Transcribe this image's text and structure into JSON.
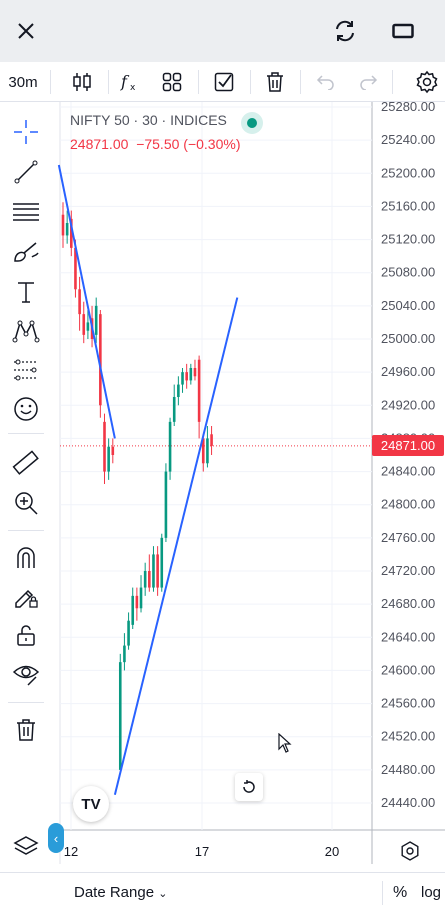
{
  "topbar": {
    "close_icon": "close-icon",
    "refresh_icon": "refresh-icon",
    "fullscreen_icon": "fullscreen-icon"
  },
  "toolbar": {
    "interval": "30m",
    "icons": [
      "candles-icon",
      "fx-indicators-icon",
      "templates-icon",
      "checkbox-icon",
      "trash-icon",
      "undo-icon",
      "redo-icon",
      "settings-icon"
    ]
  },
  "legend": {
    "symbol": "NIFTY 50 · 30 · INDICES",
    "last": "24871.00",
    "change": "−75.50 (−0.30%)"
  },
  "price_axis": {
    "labels": [
      "25280.00",
      "25240.00",
      "25200.00",
      "25160.00",
      "25120.00",
      "25080.00",
      "25040.00",
      "25000.00",
      "24960.00",
      "24920.00",
      "24880.00",
      "24840.00",
      "24800.00",
      "24760.00",
      "24720.00",
      "24680.00",
      "24640.00",
      "24600.00",
      "24560.00",
      "24520.00",
      "24480.00",
      "24440.00"
    ],
    "current_price": "24871.00"
  },
  "time_axis": {
    "labels": [
      "12",
      "17",
      "20"
    ]
  },
  "bottombar": {
    "date_range": "Date Range",
    "percent": "%",
    "log": "log"
  },
  "logo_text": "TV",
  "colors": {
    "up": "#089981",
    "down": "#f23645",
    "trendline": "#2962ff",
    "accent": "#2a9cd9"
  },
  "chart_data": {
    "type": "candlestick",
    "symbol": "NIFTY 50",
    "interval": "30",
    "ylim": [
      24420,
      25300
    ],
    "last_price": 24871.0,
    "candles": [
      {
        "o": 25150,
        "c": 25125,
        "h": 25165,
        "l": 25110
      },
      {
        "o": 25125,
        "c": 25140,
        "h": 25155,
        "l": 25115
      },
      {
        "o": 25145,
        "c": 25110,
        "h": 25155,
        "l": 25100
      },
      {
        "o": 25110,
        "c": 25060,
        "h": 25120,
        "l": 25050
      },
      {
        "o": 25060,
        "c": 25030,
        "h": 25075,
        "l": 25010
      },
      {
        "o": 25030,
        "c": 25005,
        "h": 25045,
        "l": 24995
      },
      {
        "o": 25010,
        "c": 25020,
        "h": 25035,
        "l": 25000
      },
      {
        "o": 25025,
        "c": 25000,
        "h": 25040,
        "l": 24990
      },
      {
        "o": 25005,
        "c": 25040,
        "h": 25050,
        "l": 24995
      },
      {
        "o": 25030,
        "c": 24920,
        "h": 25035,
        "l": 24905
      },
      {
        "o": 24900,
        "c": 24840,
        "h": 24910,
        "l": 24825
      },
      {
        "o": 24840,
        "c": 24870,
        "h": 24880,
        "l": 24830
      },
      {
        "o": 24870,
        "c": 24860,
        "h": 24880,
        "l": 24850
      },
      {
        "o": 24480,
        "c": 24610,
        "h": 24620,
        "l": 24480
      },
      {
        "o": 24610,
        "c": 24630,
        "h": 24645,
        "l": 24600
      },
      {
        "o": 24630,
        "c": 24660,
        "h": 24670,
        "l": 24625
      },
      {
        "o": 24655,
        "c": 24690,
        "h": 24700,
        "l": 24650
      },
      {
        "o": 24690,
        "c": 24675,
        "h": 24700,
        "l": 24660
      },
      {
        "o": 24675,
        "c": 24700,
        "h": 24715,
        "l": 24670
      },
      {
        "o": 24700,
        "c": 24720,
        "h": 24730,
        "l": 24690
      },
      {
        "o": 24720,
        "c": 24700,
        "h": 24740,
        "l": 24695
      },
      {
        "o": 24700,
        "c": 24740,
        "h": 24750,
        "l": 24695
      },
      {
        "o": 24740,
        "c": 24700,
        "h": 24750,
        "l": 24690
      },
      {
        "o": 24700,
        "c": 24760,
        "h": 24765,
        "l": 24695
      },
      {
        "o": 24760,
        "c": 24840,
        "h": 24850,
        "l": 24755
      },
      {
        "o": 24840,
        "c": 24900,
        "h": 24905,
        "l": 24830
      },
      {
        "o": 24900,
        "c": 24930,
        "h": 24945,
        "l": 24895
      },
      {
        "o": 24930,
        "c": 24945,
        "h": 24955,
        "l": 24920
      },
      {
        "o": 24945,
        "c": 24960,
        "h": 24965,
        "l": 24935
      },
      {
        "o": 24960,
        "c": 24950,
        "h": 24970,
        "l": 24940
      },
      {
        "o": 24950,
        "c": 24965,
        "h": 24970,
        "l": 24945
      },
      {
        "o": 24965,
        "c": 24955,
        "h": 24975,
        "l": 24950
      },
      {
        "o": 24975,
        "c": 24900,
        "h": 24980,
        "l": 24880
      },
      {
        "o": 24880,
        "c": 24850,
        "h": 24885,
        "l": 24840
      },
      {
        "o": 24850,
        "c": 24880,
        "h": 24895,
        "l": 24845
      },
      {
        "o": 24885,
        "c": 24871,
        "h": 24895,
        "l": 24860
      }
    ],
    "trendlines": [
      {
        "from": {
          "i": -1,
          "p": 25210
        },
        "to": {
          "i": 12.5,
          "p": 24880
        }
      },
      {
        "from": {
          "i": 12.5,
          "p": 24450
        },
        "to": {
          "i": 42,
          "p": 25050
        }
      }
    ]
  }
}
